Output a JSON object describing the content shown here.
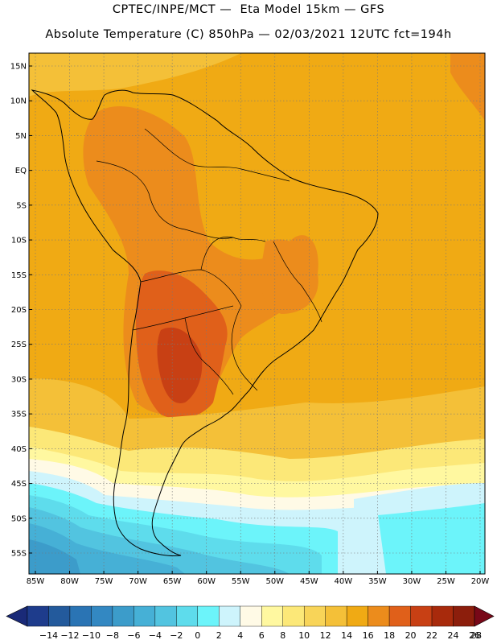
{
  "header": {
    "line1": "CPTEC/INPE/MCT —  Eta Model 15km — GFS",
    "line2": "Absolute Temperature (C) 850hPa — 02/03/2021 12UTC fct=194h"
  },
  "axes": {
    "lat_labels": [
      "15N",
      "10N",
      "5N",
      "EQ",
      "5S",
      "10S",
      "15S",
      "20S",
      "25S",
      "30S",
      "35S",
      "40S",
      "45S",
      "50S",
      "55S"
    ],
    "lon_labels": [
      "85W",
      "80W",
      "75W",
      "70W",
      "65W",
      "60W",
      "55W",
      "50W",
      "45W",
      "40W",
      "35W",
      "30W",
      "25W",
      "20W"
    ]
  },
  "colorbar": {
    "labels": [
      "-14",
      "-12",
      "-10",
      "-8",
      "-6",
      "-4",
      "-2",
      "0",
      "2",
      "4",
      "6",
      "8",
      "10",
      "12",
      "14",
      "16",
      "18",
      "20",
      "22",
      "24",
      "26",
      "28"
    ],
    "colors": [
      "#1e3c8c",
      "#235a9c",
      "#2a74b4",
      "#3388c2",
      "#3c9cca",
      "#46b0d6",
      "#52c4e0",
      "#5edcec",
      "#6cf4fa",
      "#cef4fc",
      "#fffae6",
      "#fff8a0",
      "#fce878",
      "#f8d458",
      "#f4c038",
      "#f0aa14",
      "#ec8c1c",
      "#e0601a",
      "#c84014",
      "#a82a0c",
      "#8c1e0c"
    ],
    "under_color": "#1a2a78",
    "over_color": "#780818"
  },
  "palette": {
    "ocean_base": "#f0aa14",
    "warm": "#ec8c1c",
    "hot": "#e0601a",
    "hottest": "#c84014",
    "mild": "#f4c038",
    "pale": "#fce878",
    "cool": "#fff8a0",
    "cream": "#fffae6",
    "ice": "#cef4fc",
    "cyan": "#6cf4fa",
    "sky": "#5edcec",
    "blue1": "#52c4e0",
    "blue2": "#46b0d6",
    "blue3": "#3c9cca",
    "blue4": "#3388c2"
  }
}
